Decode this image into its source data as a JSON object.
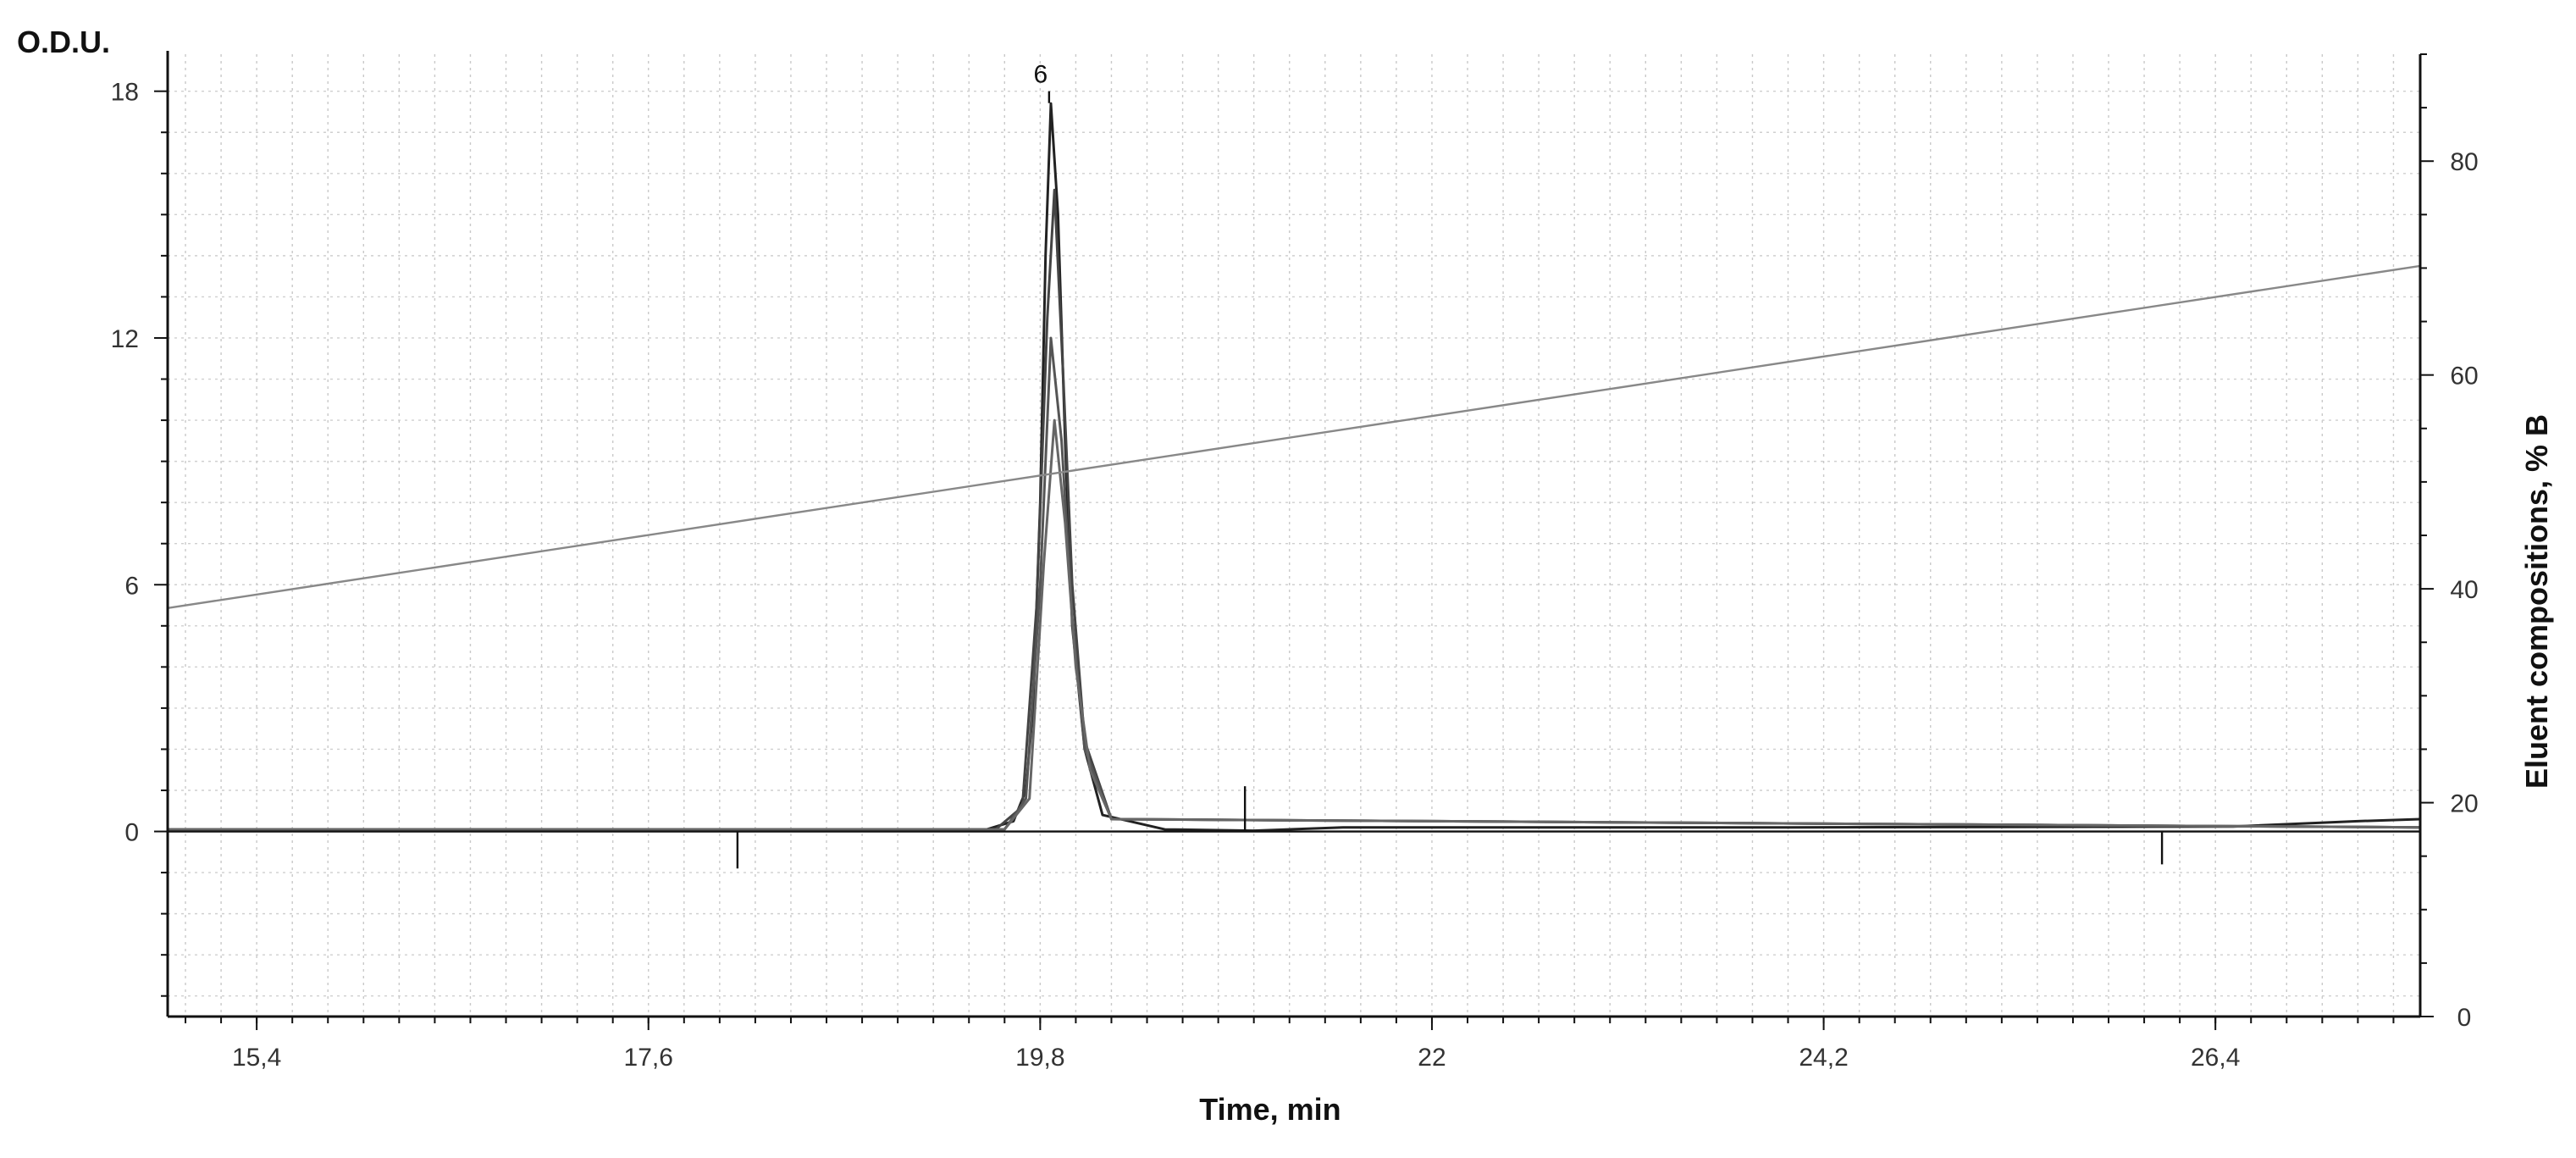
{
  "chart_data": {
    "type": "line",
    "y_unit_label": "O.D.U.",
    "xlabel": "Time, min",
    "ylabel_right": "Eluent compositions, % B",
    "xlim": [
      14.9,
      27.55
    ],
    "ylim_left": [
      -4.5,
      18.9
    ],
    "ylim_right": [
      0,
      90
    ],
    "x_ticks": [
      "15,4",
      "17,6",
      "19,8",
      "22",
      "24,2",
      "26,4"
    ],
    "x_tick_values": [
      15.4,
      17.6,
      19.8,
      22.0,
      24.2,
      26.4
    ],
    "y_left_ticks": [
      "0",
      "6",
      "12",
      "18"
    ],
    "y_left_tick_values": [
      0,
      6,
      12,
      18
    ],
    "y_right_ticks": [
      "0",
      "20",
      "40",
      "60",
      "80"
    ],
    "y_right_tick_values": [
      0,
      20,
      40,
      60,
      80
    ],
    "grid": true,
    "legend": "none",
    "annotations": [
      {
        "text": "6",
        "x": 19.85,
        "y": 18.0
      }
    ],
    "series": [
      {
        "axis": "left",
        "color": "#222222",
        "x": [
          14.9,
          19.5,
          19.65,
          19.72,
          19.76,
          19.8,
          19.83,
          19.86,
          19.9,
          19.94,
          19.98,
          20.05,
          20.15,
          20.5,
          21.0,
          21.5,
          24.0,
          26.5,
          27.2,
          27.55
        ],
        "y": [
          0.05,
          0.05,
          0.25,
          1.0,
          3.0,
          8.0,
          14.0,
          17.7,
          15.0,
          9.5,
          5.0,
          2.0,
          0.4,
          0.05,
          0.02,
          0.1,
          0.1,
          0.12,
          0.25,
          0.3
        ]
      },
      {
        "axis": "left",
        "color": "#444444",
        "x": [
          14.9,
          19.55,
          19.7,
          19.78,
          19.84,
          19.88,
          19.93,
          19.98,
          20.05,
          20.2,
          27.55
        ],
        "y": [
          0.05,
          0.05,
          0.6,
          5.5,
          12.5,
          15.6,
          11.0,
          6.0,
          2.2,
          0.3,
          0.1
        ]
      },
      {
        "axis": "left",
        "color": "#555555",
        "x": [
          14.9,
          19.6,
          19.72,
          19.8,
          19.86,
          19.92,
          19.98,
          20.05,
          20.2,
          27.55
        ],
        "y": [
          0.05,
          0.05,
          0.8,
          6.0,
          12.0,
          9.5,
          5.2,
          2.0,
          0.3,
          0.1
        ]
      },
      {
        "axis": "left",
        "color": "#666666",
        "x": [
          14.9,
          19.6,
          19.74,
          19.82,
          19.88,
          19.94,
          20.0,
          20.08,
          20.2,
          27.55
        ],
        "y": [
          0.05,
          0.05,
          0.8,
          6.5,
          10.0,
          7.5,
          4.0,
          1.5,
          0.3,
          0.1
        ]
      },
      {
        "axis": "right",
        "color": "#888888",
        "x": [
          14.9,
          27.55
        ],
        "y": [
          38.2,
          70.2
        ]
      }
    ],
    "baseline_markers": [
      {
        "x": 18.1,
        "y_from": 0,
        "y_to": -0.9
      },
      {
        "x": 20.95,
        "y_from": 0,
        "y_to": 1.1
      },
      {
        "x": 26.1,
        "y_from": 0,
        "y_to": -0.8
      }
    ]
  }
}
